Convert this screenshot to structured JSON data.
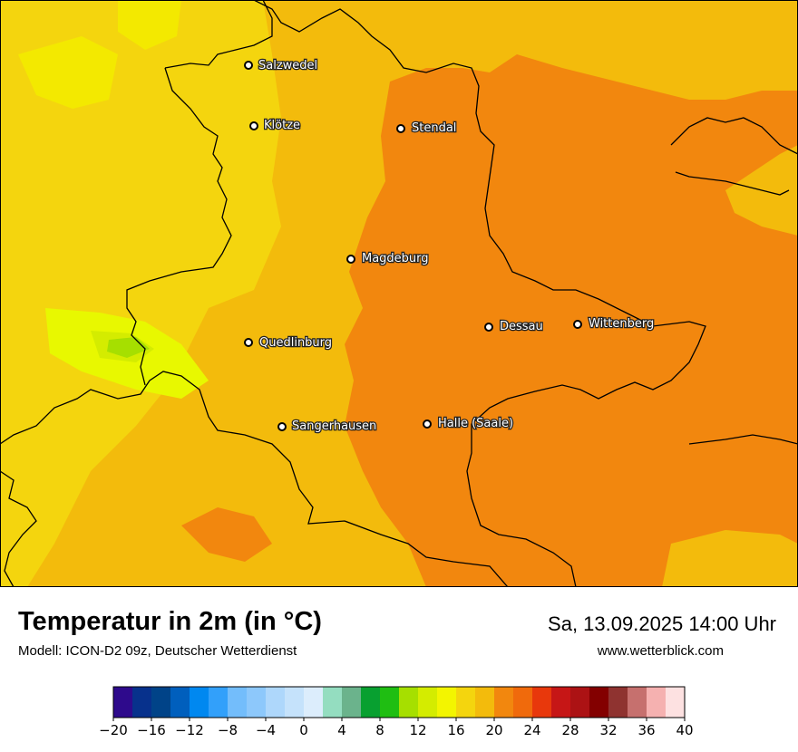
{
  "map": {
    "cities": [
      {
        "name": "Salzwedel"
      },
      {
        "name": "Klötze"
      },
      {
        "name": "Stendal"
      },
      {
        "name": "Magdeburg"
      },
      {
        "name": "Quedlinburg"
      },
      {
        "name": "Dessau"
      },
      {
        "name": "Wittenberg"
      },
      {
        "name": "Sangerhausen"
      },
      {
        "name": "Halle (Saale)"
      }
    ],
    "colors": {
      "t16": "#f3e900",
      "t18": "#f4d50e",
      "t20": "#f3bb0c",
      "t22": "#f2870e",
      "t14": "#e8f800",
      "t12": "#d4ec00",
      "t10": "#a6df00"
    }
  },
  "footer": {
    "title": "Temperatur in 2m (in °C)",
    "subtitle": "Modell: ICON-D2 09z, Deutscher Wetterdienst",
    "datetime": "Sa, 13.09.2025 14:00 Uhr",
    "website": "www.wetterblick.com"
  },
  "legend": {
    "colors": [
      "#2e0a8c",
      "#07318c",
      "#004388",
      "#005fbd",
      "#0088f0",
      "#32a0fa",
      "#73bdfb",
      "#8dc8fb",
      "#aed7fb",
      "#c5e2fb",
      "#dcedfc",
      "#94ddc0",
      "#6bb38c",
      "#08a030",
      "#1fbe12",
      "#a6df00",
      "#d4ec00",
      "#f3f500",
      "#f4d50e",
      "#f3bb0c",
      "#f2870e",
      "#f06a0c",
      "#e8380c",
      "#c61616",
      "#ac1214",
      "#830000",
      "#8f3330",
      "#c6706e",
      "#f5b1b0",
      "#fde1e1"
    ],
    "ticks": [
      "−20",
      "−16",
      "−12",
      "−8",
      "−4",
      "0",
      "4",
      "8",
      "12",
      "16",
      "20",
      "24",
      "28",
      "32",
      "36",
      "40"
    ]
  }
}
